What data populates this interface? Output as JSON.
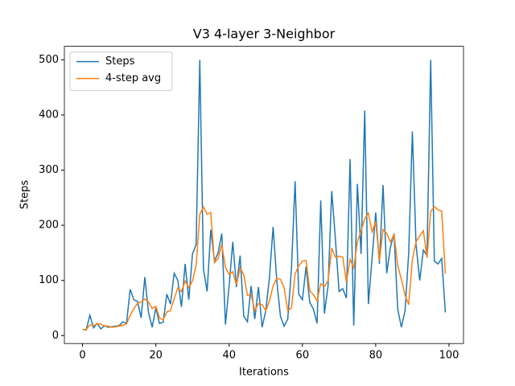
{
  "chart_data": {
    "type": "line",
    "title": "V3 4-layer 3-Neighbor",
    "xlabel": "Iterations",
    "ylabel": "Steps",
    "x": [
      0,
      1,
      2,
      3,
      4,
      5,
      6,
      7,
      8,
      9,
      10,
      11,
      12,
      13,
      14,
      15,
      16,
      17,
      18,
      19,
      20,
      21,
      22,
      23,
      24,
      25,
      26,
      27,
      28,
      29,
      30,
      31,
      32,
      33,
      34,
      35,
      36,
      37,
      38,
      39,
      40,
      41,
      42,
      43,
      44,
      45,
      46,
      47,
      48,
      49,
      50,
      51,
      52,
      53,
      54,
      55,
      56,
      57,
      58,
      59,
      60,
      61,
      62,
      63,
      64,
      65,
      66,
      67,
      68,
      69,
      70,
      71,
      72,
      73,
      74,
      75,
      76,
      77,
      78,
      79,
      80,
      81,
      82,
      83,
      84,
      85,
      86,
      87,
      88,
      89,
      90,
      91,
      92,
      93,
      94,
      95,
      96,
      97,
      98,
      99
    ],
    "series": [
      {
        "name": "Steps",
        "color": "#1f77b4",
        "values": [
          11,
          10,
          37,
          14,
          22,
          12,
          18,
          15,
          16,
          17,
          18,
          25,
          22,
          84,
          65,
          62,
          32,
          106,
          42,
          15,
          50,
          22,
          24,
          75,
          57,
          113,
          100,
          52,
          130,
          65,
          148,
          165,
          500,
          120,
          80,
          192,
          135,
          150,
          185,
          20,
          90,
          170,
          88,
          145,
          35,
          25,
          90,
          30,
          88,
          15,
          45,
          105,
          197,
          100,
          35,
          17,
          30,
          120,
          280,
          75,
          65,
          125,
          60,
          48,
          22,
          245,
          40,
          90,
          262,
          175,
          80,
          85,
          68,
          320,
          18,
          275,
          148,
          408,
          57,
          140,
          223,
          130,
          273,
          113,
          160,
          185,
          48,
          15,
          45,
          150,
          370,
          165,
          100,
          155,
          145,
          500,
          135,
          130,
          140,
          42
        ]
      },
      {
        "name": "4-step avg",
        "color": "#ff7f0e",
        "values": [
          11,
          11,
          19,
          18,
          21,
          21,
          17,
          17,
          15,
          16,
          17,
          19,
          21,
          37,
          49,
          58,
          61,
          66,
          61,
          49,
          53,
          32,
          28,
          43,
          45,
          67,
          86,
          80,
          99,
          87,
          99,
          127,
          220,
          233,
          220,
          223,
          132,
          140,
          165,
          123,
          111,
          116,
          92,
          123,
          110,
          73,
          74,
          45,
          58,
          56,
          45,
          63,
          90,
          104,
          102,
          87,
          45,
          50,
          112,
          126,
          135,
          136,
          81,
          74,
          63,
          94,
          89,
          99,
          159,
          142,
          144,
          142,
          97,
          138,
          123,
          170,
          190,
          212,
          222,
          188,
          207,
          135,
          192,
          185,
          170,
          183,
          127,
          102,
          73,
          56,
          138,
          170,
          181,
          190,
          141,
          225,
          234,
          228,
          226,
          112
        ]
      }
    ],
    "xlim": [
      -4.95,
      103.95
    ],
    "xticks": [
      0,
      20,
      40,
      60,
      80,
      100
    ],
    "ylim": [
      -14.5,
      524.5
    ],
    "yticks": [
      0,
      100,
      200,
      300,
      400,
      500
    ],
    "legend": "upper left"
  }
}
